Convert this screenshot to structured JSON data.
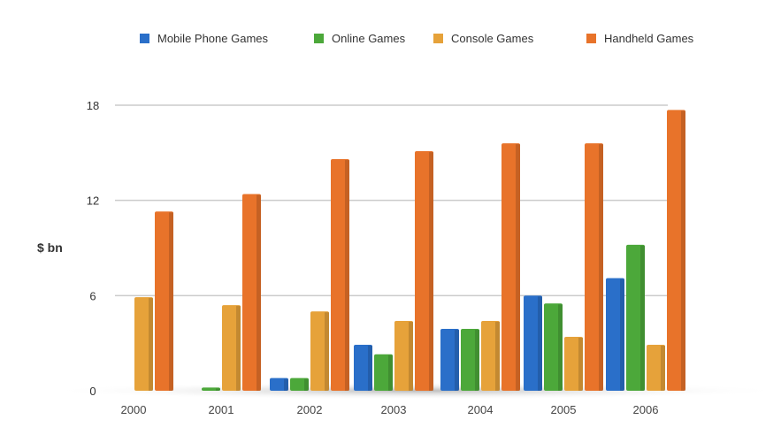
{
  "chart_data": {
    "type": "bar",
    "title": "",
    "xlabel": "",
    "ylabel": "$ bn",
    "ylim": [
      0,
      18
    ],
    "yticks": [
      0,
      6,
      12,
      18
    ],
    "grid": true,
    "legend_position": "top",
    "categories": [
      "2000",
      "2001",
      "2002",
      "2003",
      "2004",
      "2005",
      "2006"
    ],
    "series": [
      {
        "name": "Mobile Phone Games",
        "color": "#2a6fc9",
        "values": [
          0,
          0,
          0.8,
          2.9,
          3.9,
          6.0,
          7.1
        ]
      },
      {
        "name": "Online Games",
        "color": "#4ca83a",
        "values": [
          0,
          0.2,
          0.8,
          2.3,
          3.9,
          5.5,
          9.2
        ]
      },
      {
        "name": "Console Games",
        "color": "#e6a23a",
        "values": [
          5.9,
          5.4,
          5.0,
          4.4,
          4.4,
          3.4,
          2.9
        ]
      },
      {
        "name": "Handheld Games",
        "color": "#e8732a",
        "values": [
          11.3,
          12.4,
          14.6,
          15.1,
          15.6,
          15.6,
          17.7
        ]
      }
    ]
  }
}
